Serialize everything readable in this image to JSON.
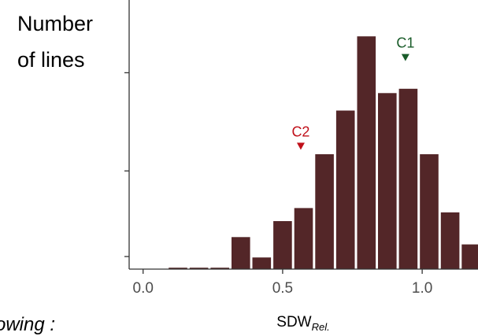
{
  "chart_data": {
    "type": "bar",
    "title": "",
    "ylabel": [
      "Number",
      "of lines"
    ],
    "xlabel": {
      "main": "SDW",
      "sub": "Rel."
    },
    "xlim": [
      -0.05,
      1.2
    ],
    "ylim": [
      0,
      18.5
    ],
    "y_ticks": [
      0,
      6.75,
      13.5
    ],
    "x_ticks": [
      0.0,
      0.5,
      1.0
    ],
    "x_tick_labels": [
      "0.0",
      "0.5",
      "1.0"
    ],
    "bin_width": 0.075,
    "bins": [
      {
        "x": 0.125,
        "count": 0.1
      },
      {
        "x": 0.2,
        "count": 0.1
      },
      {
        "x": 0.275,
        "count": 0.1
      },
      {
        "x": 0.35,
        "count": 2.2
      },
      {
        "x": 0.425,
        "count": 0.8
      },
      {
        "x": 0.5,
        "count": 3.3
      },
      {
        "x": 0.575,
        "count": 4.2
      },
      {
        "x": 0.65,
        "count": 7.9
      },
      {
        "x": 0.725,
        "count": 10.9
      },
      {
        "x": 0.8,
        "count": 16.0
      },
      {
        "x": 0.875,
        "count": 12.1
      },
      {
        "x": 0.95,
        "count": 12.4
      },
      {
        "x": 1.025,
        "count": 7.9
      },
      {
        "x": 1.1,
        "count": 3.9
      },
      {
        "x": 1.175,
        "count": 1.7
      }
    ],
    "markers": [
      {
        "label": "C1",
        "x": 0.94,
        "y": 14.3,
        "color": "#1a5c2a"
      },
      {
        "label": "C2",
        "x": 0.565,
        "y": 8.2,
        "color": "#c0101a"
      }
    ],
    "bar_color": "#532628",
    "axis_color": "#333333",
    "grid": false,
    "legend": "none"
  },
  "stray_text": "owing :"
}
